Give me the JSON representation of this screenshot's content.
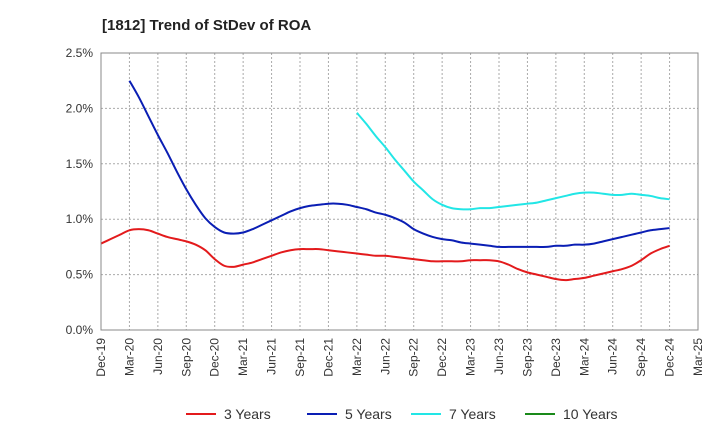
{
  "chart_data": {
    "type": "line",
    "title": "[1812]  Trend of StDev of ROA",
    "xlabel": "",
    "ylabel": "",
    "x_ticks": [
      "Dec-19",
      "Mar-20",
      "Jun-20",
      "Sep-20",
      "Dec-20",
      "Mar-21",
      "Jun-21",
      "Sep-21",
      "Dec-21",
      "Mar-22",
      "Jun-22",
      "Sep-22",
      "Dec-22",
      "Mar-23",
      "Jun-23",
      "Sep-23",
      "Dec-23",
      "Mar-24",
      "Jun-24",
      "Sep-24",
      "Dec-24",
      "Mar-25"
    ],
    "y_ticks": [
      "0.0%",
      "0.5%",
      "1.0%",
      "1.5%",
      "2.0%",
      "2.5%"
    ],
    "ylim": [
      0,
      2.5
    ],
    "grid": true,
    "legend_position": "bottom",
    "series": [
      {
        "name": "3 Years",
        "color": "#e31a1c",
        "x": [
          "Dec-19",
          "Jan-20",
          "Feb-20",
          "Mar-20",
          "Apr-20",
          "May-20",
          "Jun-20",
          "Jul-20",
          "Aug-20",
          "Sep-20",
          "Oct-20",
          "Nov-20",
          "Dec-20",
          "Jan-21",
          "Feb-21",
          "Mar-21",
          "Apr-21",
          "May-21",
          "Jun-21",
          "Jul-21",
          "Aug-21",
          "Sep-21",
          "Oct-21",
          "Nov-21",
          "Dec-21",
          "Jan-22",
          "Feb-22",
          "Mar-22",
          "Apr-22",
          "May-22",
          "Jun-22",
          "Jul-22",
          "Aug-22",
          "Sep-22",
          "Oct-22",
          "Nov-22",
          "Dec-22",
          "Jan-23",
          "Feb-23",
          "Mar-23",
          "Apr-23",
          "May-23",
          "Jun-23",
          "Jul-23",
          "Aug-23",
          "Sep-23",
          "Oct-23",
          "Nov-23",
          "Dec-23",
          "Jan-24",
          "Feb-24",
          "Mar-24",
          "Apr-24",
          "May-24",
          "Jun-24",
          "Jul-24",
          "Aug-24",
          "Sep-24",
          "Oct-24",
          "Nov-24",
          "Dec-24"
        ],
        "values": [
          0.78,
          0.82,
          0.86,
          0.9,
          0.91,
          0.9,
          0.87,
          0.84,
          0.82,
          0.8,
          0.77,
          0.72,
          0.64,
          0.58,
          0.57,
          0.59,
          0.61,
          0.64,
          0.67,
          0.7,
          0.72,
          0.73,
          0.73,
          0.73,
          0.72,
          0.71,
          0.7,
          0.69,
          0.68,
          0.67,
          0.67,
          0.66,
          0.65,
          0.64,
          0.63,
          0.62,
          0.62,
          0.62,
          0.62,
          0.63,
          0.63,
          0.63,
          0.62,
          0.59,
          0.55,
          0.52,
          0.5,
          0.48,
          0.46,
          0.45,
          0.46,
          0.47,
          0.49,
          0.51,
          0.53,
          0.55,
          0.58,
          0.63,
          0.69,
          0.73,
          0.76
        ]
      },
      {
        "name": "5 Years",
        "color": "#0a1eb4",
        "x": [
          "Mar-20",
          "Apr-20",
          "May-20",
          "Jun-20",
          "Jul-20",
          "Aug-20",
          "Sep-20",
          "Oct-20",
          "Nov-20",
          "Dec-20",
          "Jan-21",
          "Feb-21",
          "Mar-21",
          "Apr-21",
          "May-21",
          "Jun-21",
          "Jul-21",
          "Aug-21",
          "Sep-21",
          "Oct-21",
          "Nov-21",
          "Dec-21",
          "Jan-22",
          "Feb-22",
          "Mar-22",
          "Apr-22",
          "May-22",
          "Jun-22",
          "Jul-22",
          "Aug-22",
          "Sep-22",
          "Oct-22",
          "Nov-22",
          "Dec-22",
          "Jan-23",
          "Feb-23",
          "Mar-23",
          "Apr-23",
          "May-23",
          "Jun-23",
          "Jul-23",
          "Aug-23",
          "Sep-23",
          "Oct-23",
          "Nov-23",
          "Dec-23",
          "Jan-24",
          "Feb-24",
          "Mar-24",
          "Apr-24",
          "May-24",
          "Jun-24",
          "Jul-24",
          "Aug-24",
          "Sep-24",
          "Oct-24",
          "Nov-24",
          "Dec-24"
        ],
        "values": [
          2.25,
          2.1,
          1.93,
          1.76,
          1.6,
          1.43,
          1.27,
          1.13,
          1.01,
          0.93,
          0.88,
          0.87,
          0.88,
          0.91,
          0.95,
          0.99,
          1.03,
          1.07,
          1.1,
          1.12,
          1.13,
          1.14,
          1.14,
          1.13,
          1.11,
          1.09,
          1.06,
          1.04,
          1.01,
          0.97,
          0.91,
          0.87,
          0.84,
          0.82,
          0.81,
          0.79,
          0.78,
          0.77,
          0.76,
          0.75,
          0.75,
          0.75,
          0.75,
          0.75,
          0.75,
          0.76,
          0.76,
          0.77,
          0.77,
          0.78,
          0.8,
          0.82,
          0.84,
          0.86,
          0.88,
          0.9,
          0.91,
          0.92
        ]
      },
      {
        "name": "7 Years",
        "color": "#22e6e6",
        "x": [
          "Mar-22",
          "Apr-22",
          "May-22",
          "Jun-22",
          "Jul-22",
          "Aug-22",
          "Sep-22",
          "Oct-22",
          "Nov-22",
          "Dec-22",
          "Jan-23",
          "Feb-23",
          "Mar-23",
          "Apr-23",
          "May-23",
          "Jun-23",
          "Jul-23",
          "Aug-23",
          "Sep-23",
          "Oct-23",
          "Nov-23",
          "Dec-23",
          "Jan-24",
          "Feb-24",
          "Mar-24",
          "Apr-24",
          "May-24",
          "Jun-24",
          "Jul-24",
          "Aug-24",
          "Sep-24",
          "Oct-24",
          "Nov-24",
          "Dec-24"
        ],
        "values": [
          1.96,
          1.86,
          1.75,
          1.65,
          1.54,
          1.44,
          1.34,
          1.26,
          1.18,
          1.13,
          1.1,
          1.09,
          1.09,
          1.1,
          1.1,
          1.11,
          1.12,
          1.13,
          1.14,
          1.15,
          1.17,
          1.19,
          1.21,
          1.23,
          1.24,
          1.24,
          1.23,
          1.22,
          1.22,
          1.23,
          1.22,
          1.21,
          1.19,
          1.18
        ]
      },
      {
        "name": "10 Years",
        "color": "#1a8a1a",
        "x": [],
        "values": []
      }
    ]
  }
}
